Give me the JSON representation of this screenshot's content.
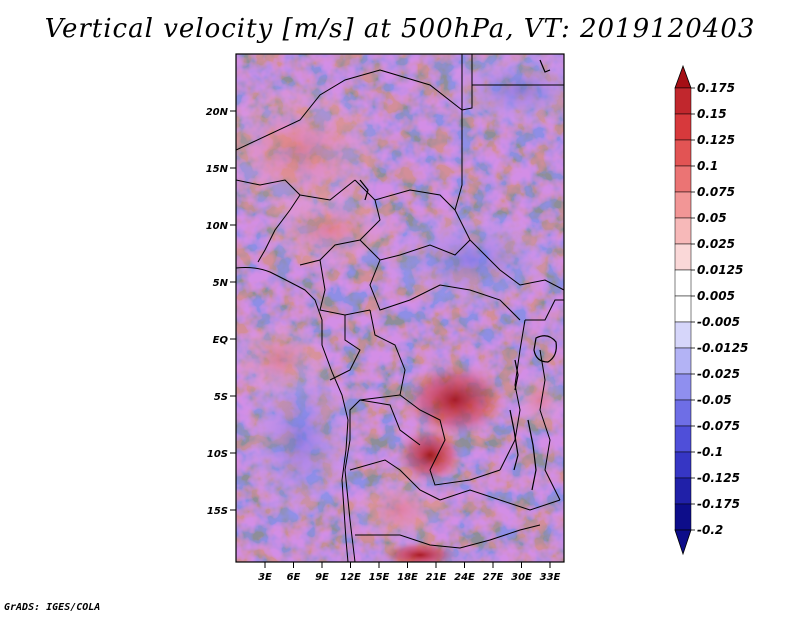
{
  "title": "Vertical velocity [m/s] at 500hPa, VT: 2019120403",
  "footer": "GrADS: IGES/COLA",
  "map": {
    "lat_labels": [
      "20N",
      "15N",
      "10N",
      "5N",
      "EQ",
      "5S",
      "10S",
      "15S"
    ],
    "lon_labels": [
      "3E",
      "6E",
      "9E",
      "12E",
      "15E",
      "18E",
      "21E",
      "24E",
      "27E",
      "30E",
      "33E"
    ]
  },
  "colorbar": {
    "levels": [
      "0.175",
      "0.15",
      "0.125",
      "0.1",
      "0.075",
      "0.05",
      "0.025",
      "0.0125",
      "0.005",
      "-0.005",
      "-0.0125",
      "-0.025",
      "-0.05",
      "-0.075",
      "-0.1",
      "-0.125",
      "-0.175",
      "-0.2"
    ],
    "colors": [
      "#a50f15",
      "#c1272d",
      "#d7393c",
      "#e25454",
      "#eb7474",
      "#f29696",
      "#f7b9b9",
      "#fad8d8",
      "#ffffff",
      "#ffffff",
      "#d6d6fa",
      "#b3b3f5",
      "#8f8fef",
      "#6e6ee6",
      "#4f4fd9",
      "#3636c4",
      "#2020a8",
      "#0d0d8a"
    ]
  }
}
